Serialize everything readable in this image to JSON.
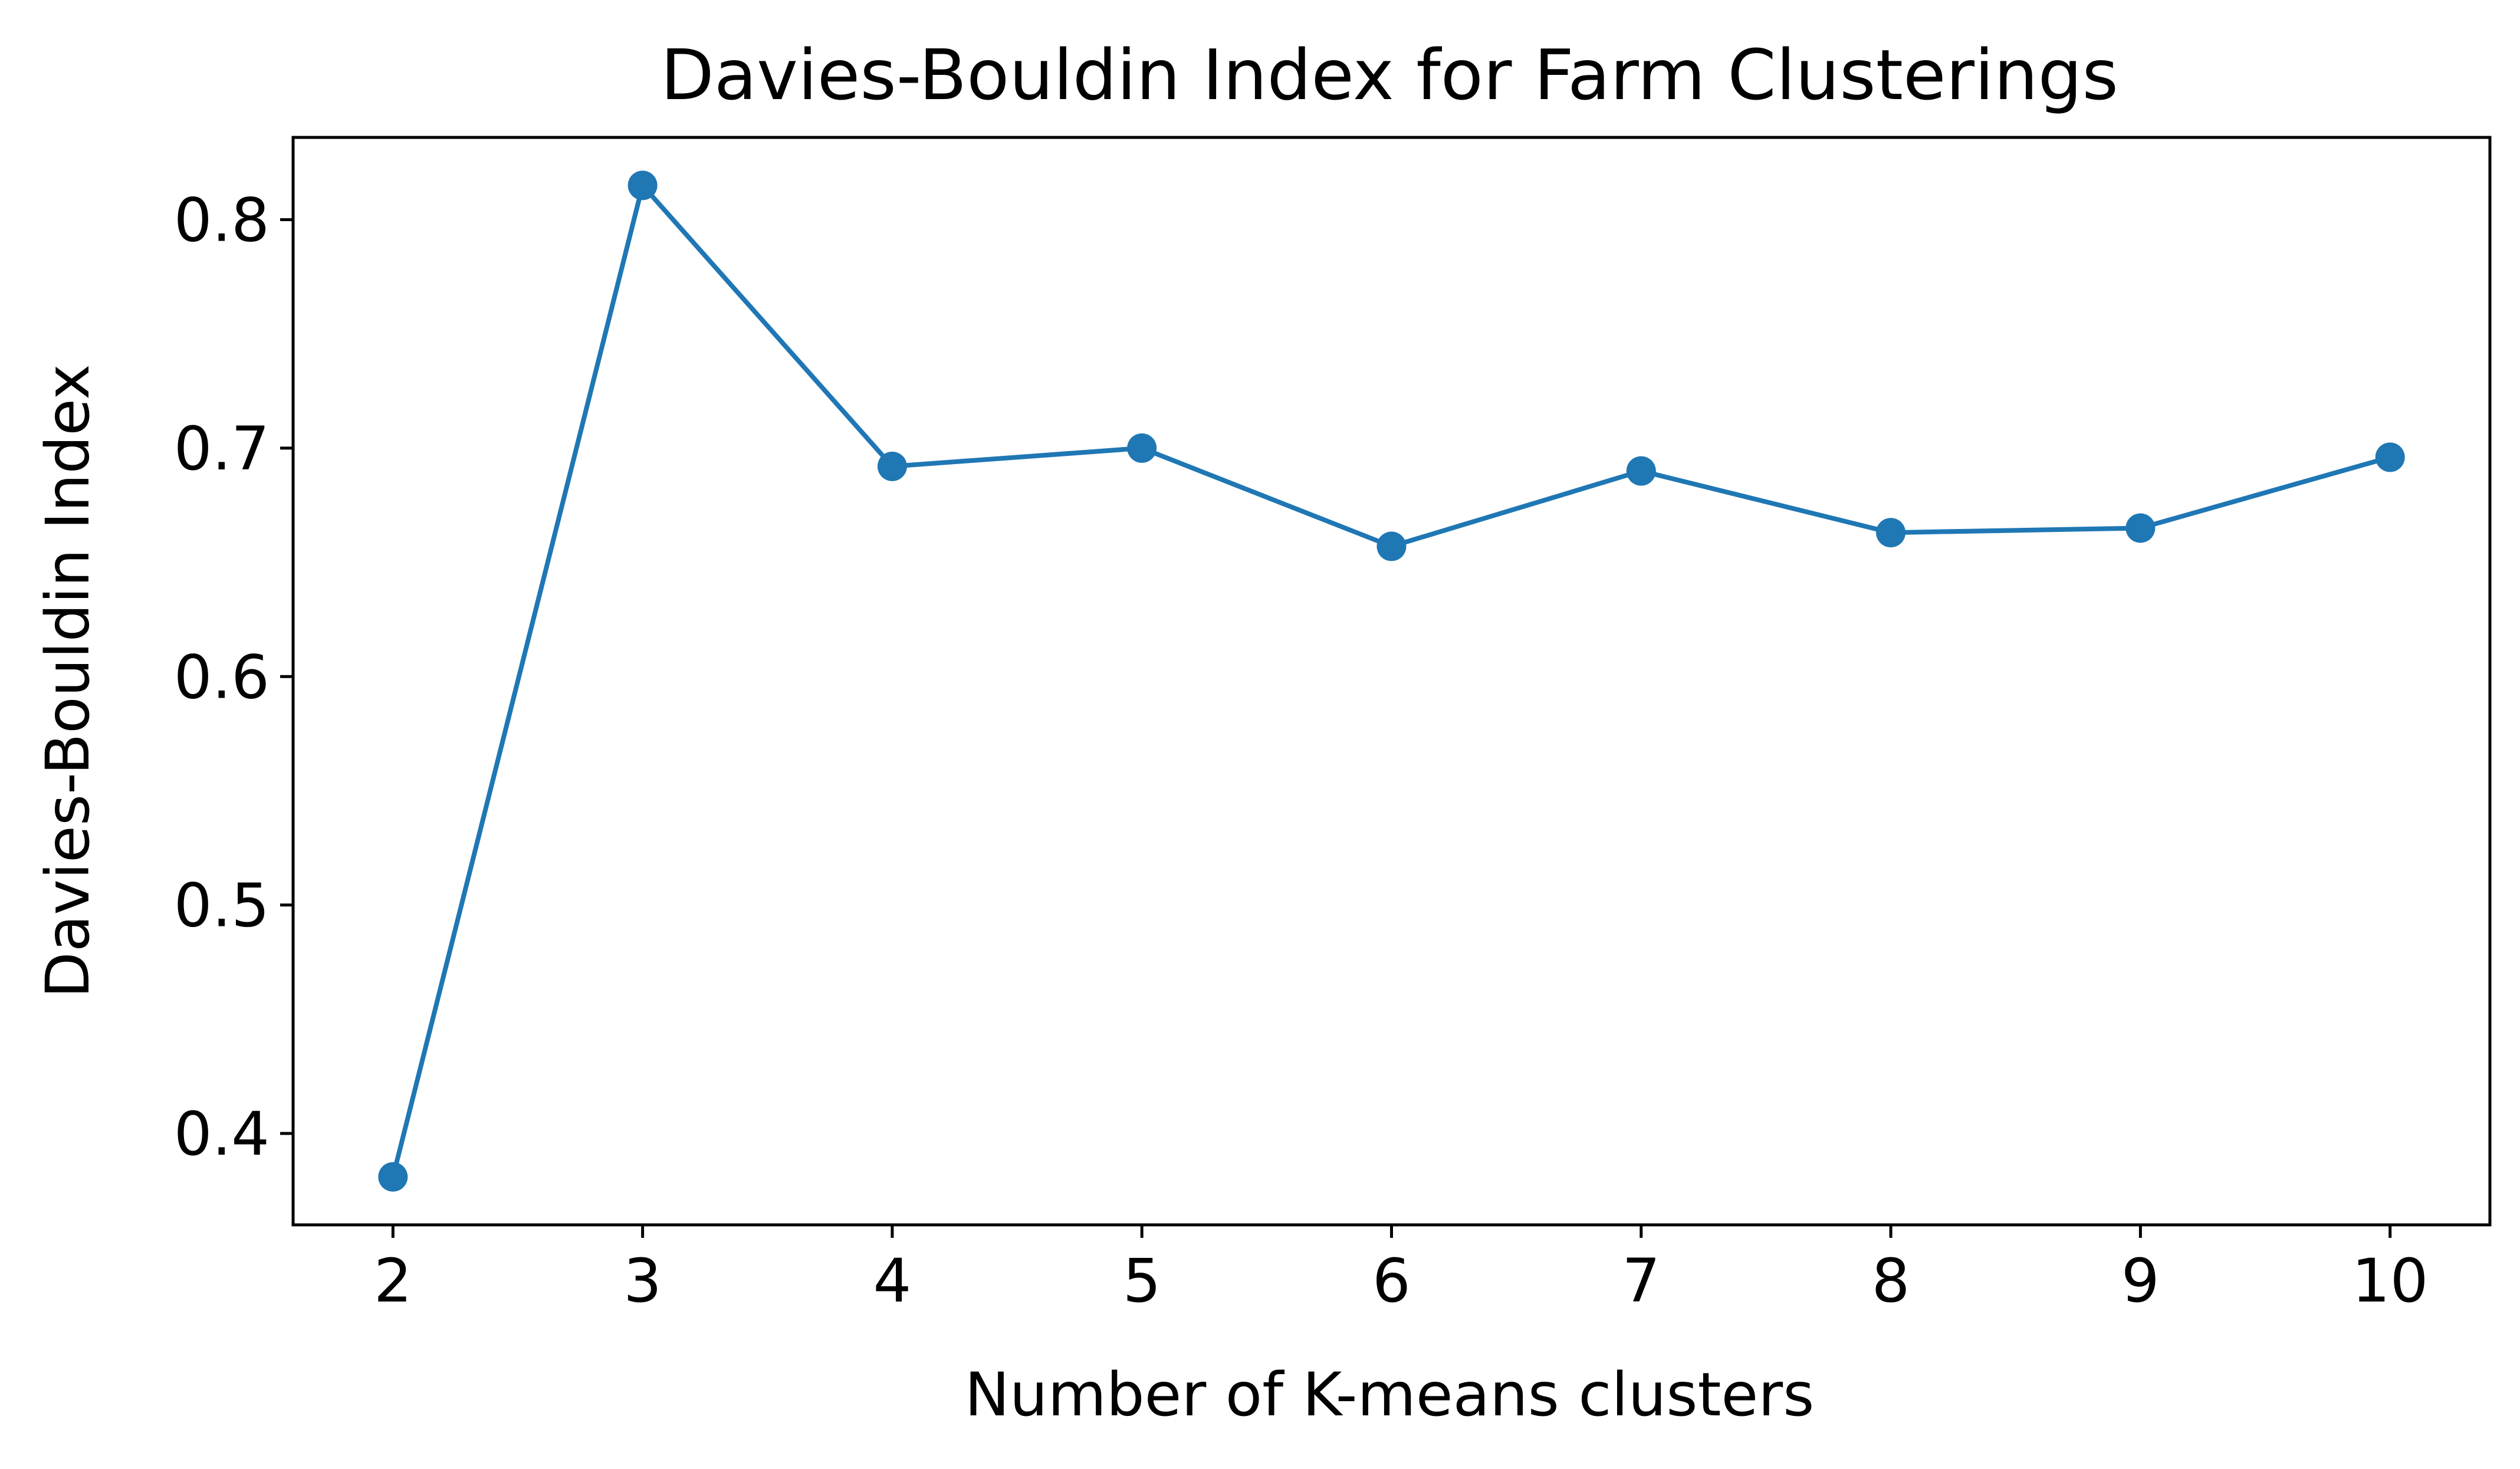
{
  "chart_data": {
    "type": "line",
    "title": "Davies-Bouldin Index for Farm Clusterings",
    "xlabel": "Number of K-means clusters",
    "ylabel": "Davies-Bouldin Index",
    "x": [
      2,
      3,
      4,
      5,
      6,
      7,
      8,
      9,
      10
    ],
    "series": [
      {
        "values": [
          0.381,
          0.815,
          0.692,
          0.7,
          0.657,
          0.69,
          0.663,
          0.665,
          0.696
        ],
        "color": "#1f77b4",
        "marker": "circle"
      }
    ],
    "xlim": [
      1.6,
      10.4
    ],
    "ylim": [
      0.36,
      0.836
    ],
    "xticks": [
      2,
      3,
      4,
      5,
      6,
      7,
      8,
      9,
      10
    ],
    "yticks": [
      0.4,
      0.5,
      0.6,
      0.7,
      0.8
    ],
    "ytick_labels": [
      "0.4",
      "0.5",
      "0.6",
      "0.7",
      "0.8"
    ],
    "grid": false,
    "legend": false
  }
}
